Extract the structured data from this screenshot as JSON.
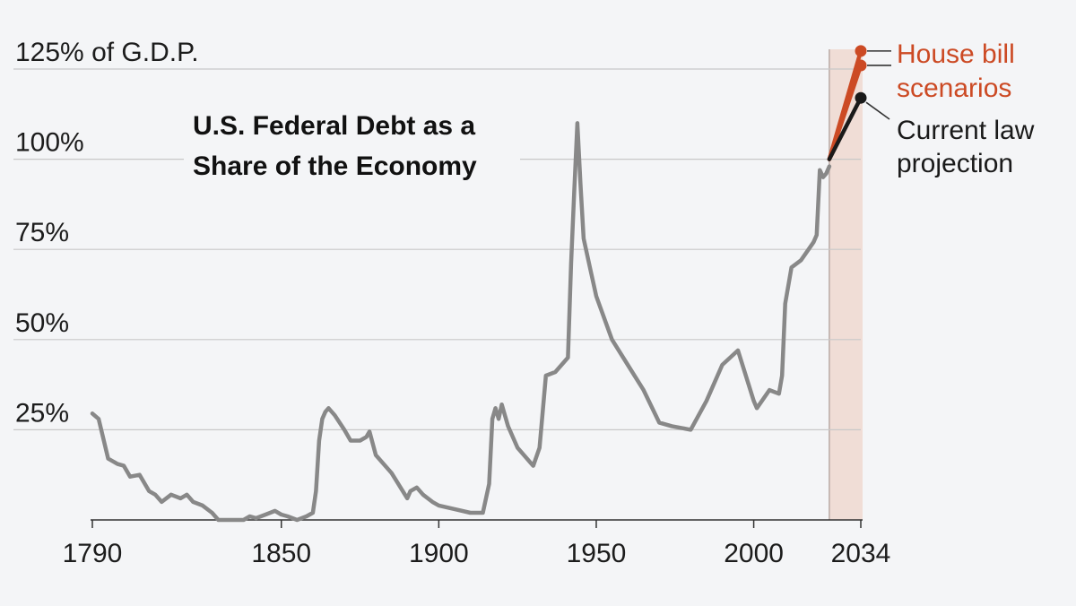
{
  "chart_data": {
    "type": "line",
    "title_lines": [
      "U.S. Federal Debt as a",
      "Share of the Economy"
    ],
    "ylabel": "",
    "xlabel": "",
    "ylim": [
      0,
      125
    ],
    "xlim": [
      1790,
      2034
    ],
    "y_ticks": [
      {
        "value": 125,
        "label": "125% of G.D.P."
      },
      {
        "value": 100,
        "label": "100%"
      },
      {
        "value": 75,
        "label": "75%"
      },
      {
        "value": 50,
        "label": "50%"
      },
      {
        "value": 25,
        "label": "25%"
      }
    ],
    "x_ticks": [
      {
        "value": 1790,
        "label": "1790"
      },
      {
        "value": 1850,
        "label": "1850"
      },
      {
        "value": 1900,
        "label": "1900"
      },
      {
        "value": 1950,
        "label": "1950"
      },
      {
        "value": 2000,
        "label": "2000"
      },
      {
        "value": 2034,
        "label": "2034"
      }
    ],
    "projection_period": [
      2024,
      2034
    ],
    "colors": {
      "historical": "#888888",
      "current_law": "#1a1a1a",
      "house_bill": "#cc4a24",
      "projection_band": "#f0ddd6",
      "grid": "#c8c8c8",
      "axis": "#333333"
    },
    "series": [
      {
        "name": "",
        "key": "historical",
        "x": [
          1790,
          1792,
          1795,
          1798,
          1800,
          1802,
          1805,
          1808,
          1810,
          1812,
          1815,
          1818,
          1820,
          1822,
          1825,
          1828,
          1830,
          1833,
          1835,
          1838,
          1840,
          1842,
          1845,
          1848,
          1850,
          1852,
          1855,
          1858,
          1860,
          1861,
          1862,
          1863,
          1864,
          1865,
          1867,
          1870,
          1872,
          1875,
          1877,
          1878,
          1880,
          1885,
          1890,
          1891,
          1893,
          1895,
          1898,
          1900,
          1905,
          1910,
          1914,
          1916,
          1917,
          1918,
          1919,
          1920,
          1922,
          1925,
          1929,
          1930,
          1932,
          1934,
          1937,
          1939,
          1941,
          1942,
          1943,
          1944,
          1945,
          1946,
          1948,
          1950,
          1955,
          1960,
          1965,
          1970,
          1974,
          1980,
          1985,
          1990,
          1995,
          2000,
          2001,
          2005,
          2008,
          2009,
          2010,
          2012,
          2015,
          2019,
          2020,
          2021,
          2022,
          2023,
          2024
        ],
        "values": [
          29.5,
          28,
          17,
          15.5,
          15,
          12,
          12.5,
          8,
          7,
          5,
          7,
          6,
          7,
          5,
          4,
          2,
          0,
          0,
          0,
          0,
          1,
          0.5,
          1.5,
          2.5,
          1.5,
          1,
          0,
          1,
          2,
          8,
          22,
          28,
          30,
          31,
          29,
          25,
          22,
          22,
          23,
          24.5,
          18,
          13,
          6,
          8,
          9,
          7,
          5,
          4,
          3,
          2,
          2,
          10,
          28,
          31,
          28,
          32,
          26,
          20,
          16,
          15,
          20,
          40,
          41,
          43,
          45,
          71,
          91,
          110,
          93,
          78,
          70,
          62,
          50,
          43,
          36,
          27,
          26,
          25,
          33,
          43,
          47,
          33,
          31,
          36,
          35,
          40,
          60,
          70,
          72,
          77,
          79,
          97,
          95,
          96,
          98
        ]
      },
      {
        "name": "Current law projection",
        "key": "current_law",
        "x": [
          2024,
          2034
        ],
        "values": [
          100,
          117
        ]
      },
      {
        "name": "House bill scenarios",
        "key": "house_bill_high",
        "x": [
          2024,
          2034
        ],
        "values": [
          100,
          130
        ]
      },
      {
        "name": "House bill scenarios",
        "key": "house_bill_low",
        "x": [
          2024,
          2034
        ],
        "values": [
          100,
          126
        ]
      }
    ],
    "annotations": [
      {
        "key": "house_bill",
        "lines": [
          "House bill",
          "scenarios"
        ]
      },
      {
        "key": "current_law",
        "lines": [
          "Current law",
          "projection"
        ]
      }
    ]
  }
}
